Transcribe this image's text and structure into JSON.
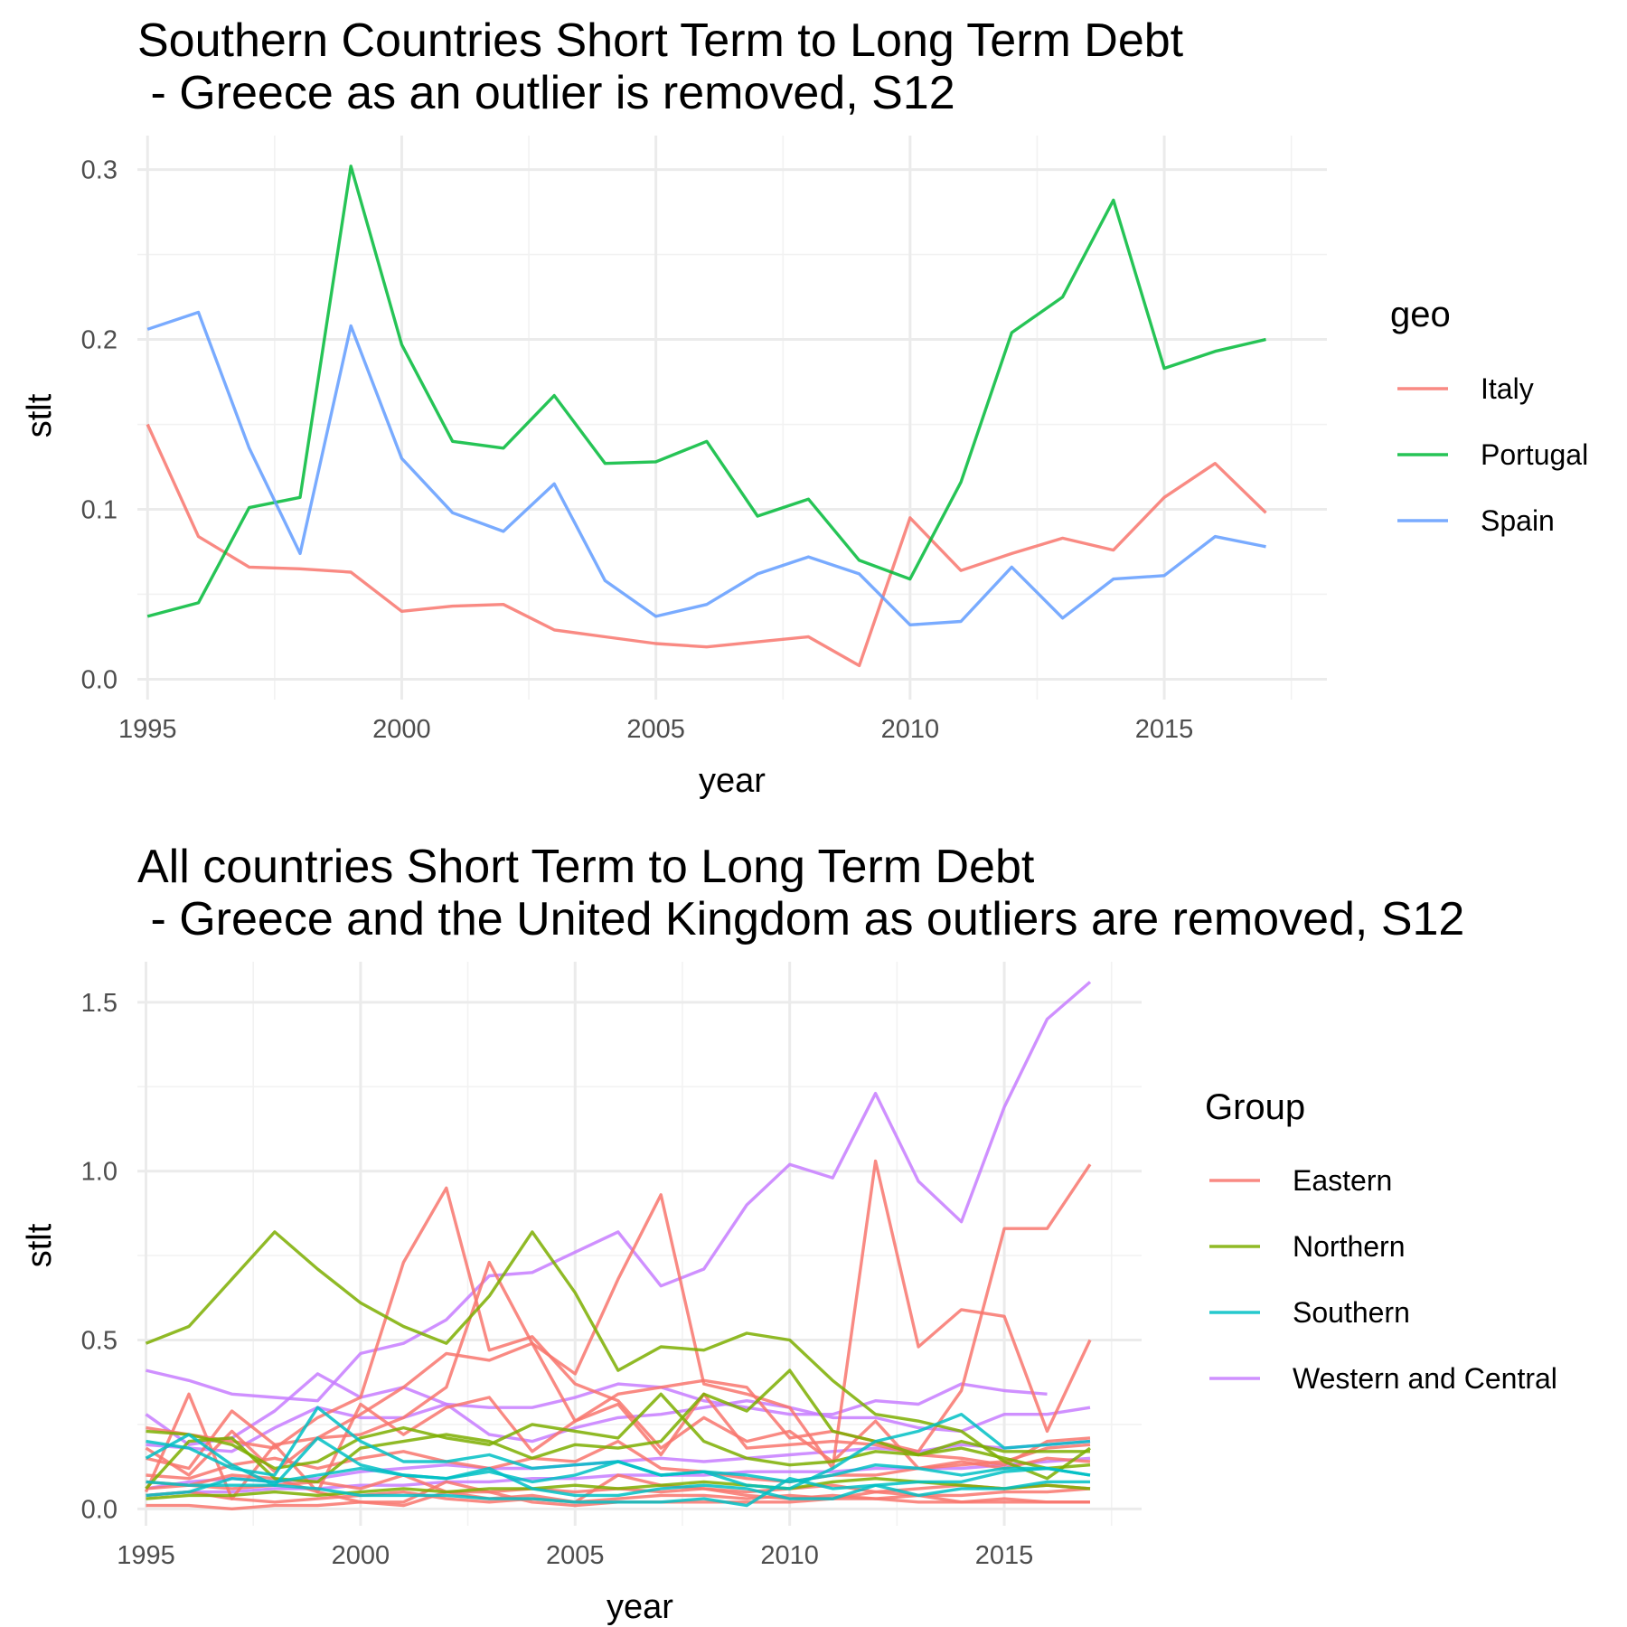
{
  "chart_data": [
    {
      "type": "line",
      "title": "Southern Countries Short Term to Long Term Debt",
      "subtitle": " - Greece as an outlier is removed, S12",
      "xlabel": "year",
      "ylabel": "stlt",
      "xlim": [
        1994.8,
        2018.2
      ],
      "ylim": [
        -0.012,
        0.32
      ],
      "x_ticks": [
        1995,
        2000,
        2005,
        2010,
        2015
      ],
      "x_tick_labels": [
        "1995",
        "2000",
        "2005",
        "2010",
        "2015"
      ],
      "y_ticks": [
        0.0,
        0.1,
        0.2,
        0.3
      ],
      "y_tick_labels": [
        "0.0",
        "0.1",
        "0.2",
        "0.3"
      ],
      "grid": true,
      "legend": {
        "title": "geo",
        "position": "right"
      },
      "x": [
        1995,
        1996,
        1997,
        1998,
        1999,
        2000,
        2001,
        2002,
        2003,
        2004,
        2005,
        2006,
        2007,
        2008,
        2009,
        2010,
        2011,
        2012,
        2013,
        2014,
        2015,
        2016,
        2017
      ],
      "series": [
        {
          "name": "Italy",
          "color": "#f8766d",
          "values": [
            0.15,
            0.084,
            0.066,
            0.065,
            0.063,
            0.04,
            0.043,
            0.044,
            0.029,
            0.025,
            0.021,
            0.019,
            0.022,
            0.025,
            0.008,
            0.095,
            0.064,
            0.074,
            0.083,
            0.076,
            0.107,
            0.127,
            0.098
          ]
        },
        {
          "name": "Portugal",
          "color": "#00ba38",
          "values": [
            0.037,
            0.045,
            0.101,
            0.107,
            0.302,
            0.197,
            0.14,
            0.136,
            0.167,
            0.127,
            0.128,
            0.14,
            0.096,
            0.106,
            0.07,
            0.059,
            0.116,
            0.204,
            0.225,
            0.282,
            0.183,
            0.193,
            0.2
          ]
        },
        {
          "name": "Spain",
          "color": "#619cff",
          "values": [
            0.206,
            0.216,
            0.136,
            0.074,
            0.208,
            0.13,
            0.098,
            0.087,
            0.115,
            0.058,
            0.037,
            0.044,
            0.062,
            0.072,
            0.062,
            0.032,
            0.034,
            0.066,
            0.036,
            0.059,
            0.061,
            0.084,
            0.078
          ]
        }
      ]
    },
    {
      "type": "line",
      "title": "All countries Short Term to Long Term Debt",
      "subtitle": " - Greece and the United Kingdom as outliers are removed, S12",
      "xlabel": "year",
      "ylabel": "stlt",
      "xlim": [
        1994.8,
        2018.2
      ],
      "ylim": [
        -0.05,
        1.62
      ],
      "x_ticks": [
        1995,
        2000,
        2005,
        2010,
        2015
      ],
      "x_tick_labels": [
        "1995",
        "2000",
        "2005",
        "2010",
        "2015"
      ],
      "y_ticks": [
        0.0,
        0.5,
        1.0,
        1.5
      ],
      "y_tick_labels": [
        "0.0",
        "0.5",
        "1.0",
        "1.5"
      ],
      "grid": true,
      "legend": {
        "title": "Group",
        "position": "right"
      },
      "groups": [
        {
          "name": "Eastern",
          "color": "#f8766d"
        },
        {
          "name": "Northern",
          "color": "#7cae00"
        },
        {
          "name": "Southern",
          "color": "#00bfc4"
        },
        {
          "name": "Western and Central",
          "color": "#c77cff"
        }
      ],
      "x": [
        1995,
        1996,
        1997,
        1998,
        1999,
        2000,
        2001,
        2002,
        2003,
        2004,
        2005,
        2006,
        2007,
        2008,
        2009,
        2010,
        2011,
        2012,
        2013,
        2014,
        2015,
        2016,
        2017
      ],
      "series": [
        {
          "group": "Western and Central",
          "values": [
            0.41,
            0.38,
            0.34,
            0.33,
            0.32,
            0.46,
            0.49,
            0.56,
            0.69,
            0.7,
            0.76,
            0.82,
            0.66,
            0.71,
            0.9,
            1.02,
            0.98,
            1.23,
            0.97,
            0.85,
            1.19,
            1.45,
            1.56
          ]
        },
        {
          "group": "Western and Central",
          "values": [
            0.28,
            0.19,
            0.21,
            0.29,
            0.4,
            0.33,
            0.36,
            0.31,
            0.3,
            0.3,
            0.33,
            0.37,
            0.36,
            0.32,
            0.3,
            0.28,
            0.28,
            0.32,
            0.31,
            0.37,
            0.35,
            0.34,
            null
          ]
        },
        {
          "group": "Western and Central",
          "values": [
            0.19,
            0.18,
            0.17,
            0.24,
            0.3,
            0.27,
            0.27,
            0.31,
            0.22,
            0.2,
            0.24,
            0.27,
            0.28,
            0.3,
            0.32,
            0.3,
            0.27,
            0.27,
            0.24,
            0.23,
            0.28,
            0.28,
            0.3
          ]
        },
        {
          "group": "Western and Central",
          "values": [
            0.06,
            0.08,
            0.09,
            0.08,
            0.09,
            0.11,
            0.12,
            0.13,
            0.12,
            0.12,
            0.13,
            0.14,
            0.15,
            0.14,
            0.15,
            0.16,
            0.17,
            0.18,
            0.17,
            0.19,
            0.18,
            0.19,
            0.2
          ]
        },
        {
          "group": "Western and Central",
          "values": [
            0.04,
            0.05,
            0.05,
            0.06,
            0.06,
            0.07,
            0.07,
            0.08,
            0.08,
            0.09,
            0.09,
            0.1,
            0.1,
            0.1,
            0.11,
            0.11,
            0.11,
            0.12,
            0.12,
            0.12,
            0.13,
            0.14,
            0.15
          ]
        },
        {
          "group": "Eastern",
          "values": [
            0.24,
            0.22,
            0.2,
            0.18,
            0.27,
            0.33,
            0.73,
            0.95,
            0.47,
            0.51,
            0.37,
            0.32,
            0.18,
            0.27,
            0.2,
            0.23,
            0.14,
            0.26,
            0.12,
            0.13,
            0.14,
            0.18,
            0.19
          ]
        },
        {
          "group": "Eastern",
          "values": [
            0.18,
            0.1,
            0.23,
            0.11,
            0.21,
            0.28,
            0.36,
            0.46,
            0.44,
            0.49,
            0.4,
            0.68,
            0.93,
            0.37,
            0.34,
            0.3,
            0.12,
            1.03,
            0.48,
            0.59,
            0.57,
            0.23,
            0.5
          ]
        },
        {
          "group": "Eastern",
          "values": [
            0.05,
            0.34,
            0.03,
            0.19,
            0.21,
            0.22,
            0.27,
            0.36,
            0.73,
            0.49,
            0.26,
            0.34,
            0.36,
            0.38,
            0.36,
            0.21,
            0.23,
            0.2,
            0.17,
            0.35,
            0.83,
            0.83,
            1.02
          ]
        },
        {
          "group": "Eastern",
          "values": [
            0.15,
            0.12,
            0.29,
            0.19,
            0.05,
            0.31,
            0.22,
            0.3,
            0.33,
            0.17,
            0.26,
            0.31,
            0.16,
            0.34,
            0.18,
            0.19,
            0.2,
            0.19,
            0.16,
            0.15,
            0.13,
            0.2,
            0.21
          ]
        },
        {
          "group": "Eastern",
          "values": [
            0.1,
            0.09,
            0.13,
            0.15,
            0.12,
            0.15,
            0.17,
            0.14,
            0.12,
            0.15,
            0.14,
            0.2,
            0.12,
            0.11,
            0.09,
            0.08,
            0.1,
            0.1,
            0.12,
            0.14,
            0.12,
            0.15,
            0.14
          ]
        },
        {
          "group": "Eastern",
          "values": [
            0.08,
            0.07,
            0.06,
            0.07,
            0.08,
            0.06,
            0.1,
            0.05,
            0.05,
            0.06,
            0.05,
            0.06,
            0.05,
            0.06,
            0.05,
            0.06,
            0.07,
            0.05,
            0.06,
            0.07,
            0.06,
            0.07,
            0.06
          ]
        },
        {
          "group": "Eastern",
          "values": [
            0.04,
            0.05,
            0.03,
            0.02,
            0.03,
            0.04,
            0.05,
            0.03,
            0.02,
            0.03,
            0.02,
            0.03,
            0.04,
            0.04,
            0.03,
            0.04,
            0.03,
            0.05,
            0.04,
            0.02,
            0.03,
            0.02,
            0.02
          ]
        },
        {
          "group": "Eastern",
          "values": [
            0.01,
            0.01,
            0.0,
            0.01,
            0.01,
            0.02,
            0.01,
            0.05,
            0.03,
            0.04,
            0.02,
            0.1,
            0.07,
            0.06,
            0.04,
            0.03,
            0.04,
            0.03,
            0.04,
            0.04,
            0.05,
            0.05,
            0.06
          ]
        },
        {
          "group": "Eastern",
          "values": [
            0.06,
            0.07,
            0.1,
            0.09,
            0.05,
            0.02,
            0.02,
            0.08,
            0.05,
            0.02,
            0.01,
            0.02,
            0.02,
            0.02,
            0.02,
            0.02,
            0.03,
            0.03,
            0.02,
            0.02,
            0.02,
            0.02,
            0.02
          ]
        },
        {
          "group": "Northern",
          "values": [
            0.49,
            0.54,
            0.68,
            0.82,
            0.71,
            0.61,
            0.54,
            0.49,
            0.63,
            0.82,
            0.64,
            0.41,
            0.48,
            0.47,
            0.52,
            0.5,
            0.38,
            0.28,
            0.26,
            0.23,
            0.14,
            0.09,
            0.18
          ]
        },
        {
          "group": "Northern",
          "values": [
            0.23,
            0.22,
            0.19,
            0.12,
            0.14,
            0.21,
            0.24,
            0.21,
            0.19,
            0.25,
            0.23,
            0.21,
            0.34,
            0.2,
            0.15,
            0.13,
            0.14,
            0.17,
            0.16,
            0.18,
            0.15,
            0.12,
            0.13
          ]
        },
        {
          "group": "Northern",
          "values": [
            0.06,
            0.2,
            0.21,
            0.09,
            0.08,
            0.18,
            0.2,
            0.22,
            0.2,
            0.15,
            0.19,
            0.18,
            0.2,
            0.34,
            0.29,
            0.41,
            0.23,
            0.2,
            0.16,
            0.2,
            0.17,
            0.17,
            0.17
          ]
        },
        {
          "group": "Northern",
          "values": [
            0.03,
            0.04,
            0.04,
            0.05,
            0.04,
            0.05,
            0.06,
            0.05,
            0.06,
            0.06,
            0.07,
            0.06,
            0.07,
            0.08,
            0.07,
            0.06,
            0.08,
            0.09,
            0.08,
            0.07,
            0.06,
            0.07,
            0.06
          ]
        },
        {
          "group": "Southern",
          "values": [
            0.2,
            0.18,
            0.12,
            0.1,
            0.3,
            0.2,
            0.14,
            0.14,
            0.16,
            0.12,
            0.13,
            0.14,
            0.1,
            0.11,
            0.07,
            0.06,
            0.12,
            0.2,
            0.23,
            0.28,
            0.18,
            0.19,
            0.2
          ]
        },
        {
          "group": "Southern",
          "values": [
            0.15,
            0.22,
            0.13,
            0.07,
            0.21,
            0.13,
            0.1,
            0.09,
            0.12,
            0.06,
            0.04,
            0.04,
            0.06,
            0.07,
            0.06,
            0.03,
            0.03,
            0.07,
            0.04,
            0.06,
            0.06,
            0.08,
            0.08
          ]
        },
        {
          "group": "Southern",
          "values": [
            0.08,
            0.07,
            0.07,
            0.07,
            0.06,
            0.04,
            0.04,
            0.04,
            0.03,
            0.03,
            0.02,
            0.02,
            0.02,
            0.03,
            0.01,
            0.09,
            0.06,
            0.07,
            0.08,
            0.08,
            0.11,
            0.12,
            0.1
          ]
        },
        {
          "group": "Southern",
          "values": [
            0.04,
            0.05,
            0.09,
            0.08,
            0.1,
            0.12,
            0.1,
            0.09,
            0.11,
            0.08,
            0.1,
            0.14,
            0.1,
            0.11,
            0.1,
            0.08,
            0.1,
            0.13,
            0.12,
            0.1,
            0.12,
            0.12,
            0.1
          ]
        }
      ]
    }
  ]
}
